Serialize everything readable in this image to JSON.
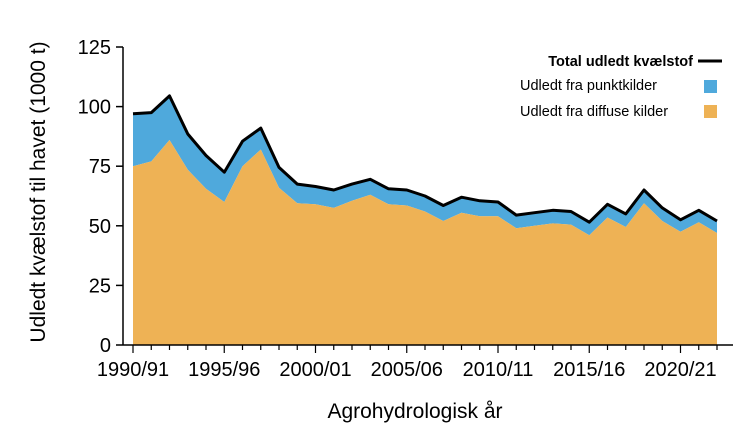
{
  "colors": {
    "diffuse": "#eeb255",
    "point": "#4fa9dc",
    "total": "#000000"
  },
  "chart_data": {
    "type": "area",
    "title": "",
    "xlabel": "Agrohydrologisk år",
    "ylabel": "Udledt kvælstof til havet (1000 t)",
    "ylim": [
      0,
      125
    ],
    "yticks": [
      0,
      25,
      50,
      75,
      100,
      125
    ],
    "x": [
      "1990/91",
      "1991/92",
      "1992/93",
      "1993/94",
      "1994/95",
      "1995/96",
      "1996/97",
      "1997/98",
      "1998/99",
      "1999/00",
      "2000/01",
      "2001/02",
      "2002/03",
      "2003/04",
      "2004/05",
      "2005/06",
      "2006/07",
      "2007/08",
      "2008/09",
      "2009/10",
      "2010/11",
      "2011/12",
      "2012/13",
      "2013/14",
      "2014/15",
      "2015/16",
      "2016/17",
      "2017/18",
      "2018/19",
      "2019/20",
      "2020/21",
      "2021/22",
      "2022/23"
    ],
    "xtick_labels": [
      "1990/91",
      "1995/96",
      "2000/01",
      "2005/06",
      "2010/11",
      "2015/16",
      "2020/21"
    ],
    "xtick_index": [
      0,
      5,
      10,
      15,
      20,
      25,
      30
    ],
    "legend_position": "top-right",
    "grid": false,
    "series": [
      {
        "name": "Total udledt kvælstof",
        "kind": "line",
        "values": [
          97,
          97.5,
          104.5,
          88.5,
          79.5,
          72.5,
          85.5,
          91,
          74.5,
          67.5,
          66.5,
          65,
          67.5,
          69.5,
          65.5,
          65,
          62.5,
          58.5,
          62,
          60.5,
          60,
          54.5,
          55.5,
          56.5,
          56,
          51.5,
          59,
          55,
          65,
          57.5,
          52.5,
          56.5,
          52
        ]
      },
      {
        "name": "Udledt fra punktkilder",
        "kind": "area-top",
        "values": [
          22,
          20.5,
          18.5,
          15,
          14,
          12.5,
          10.5,
          9,
          8.5,
          8,
          7.5,
          7.5,
          7,
          6.5,
          6.5,
          6.5,
          6.5,
          6.5,
          6.5,
          6.5,
          6,
          5.5,
          5.5,
          5.5,
          5.5,
          5.5,
          5.5,
          5.5,
          5.5,
          5.5,
          5,
          5,
          5
        ]
      },
      {
        "name": "Udledt fra diffuse kilder",
        "kind": "area-bottom",
        "values": [
          75,
          77,
          86,
          73.5,
          65.5,
          60,
          75,
          82,
          66,
          59.5,
          59,
          57.5,
          60.5,
          63,
          59,
          58.5,
          56,
          52,
          55.5,
          54,
          54,
          49,
          50,
          51,
          50.5,
          46,
          53.5,
          49.5,
          59.5,
          52,
          47.5,
          51.5,
          47
        ]
      }
    ]
  }
}
